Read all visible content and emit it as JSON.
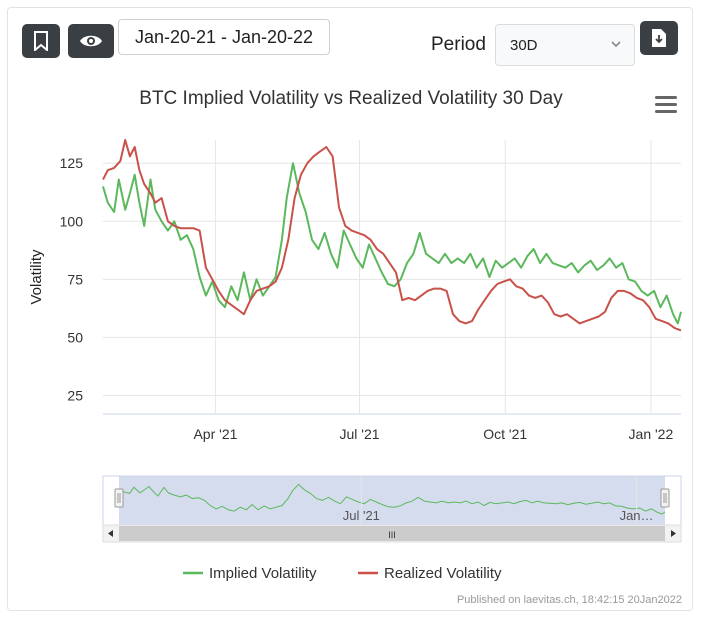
{
  "toolbar": {
    "bookmark_icon": "bookmark-icon",
    "view_icon": "eye-icon",
    "date_range": "Jan-20-21 - Jan-20-22",
    "period_label": "Period",
    "period_value": "30D",
    "download_icon": "download-icon"
  },
  "footer": {
    "published": "Published on laevitas.ch, 18:42:15 20Jan2022"
  },
  "navigator": {
    "handle_label": "III",
    "xtick_labels": [
      "Jul '21",
      "Jan…"
    ]
  },
  "colors": {
    "implied": "#5cb85c",
    "realized": "#c9514a",
    "navigator_fill": "#ccd6eb",
    "grid": "#e6e6e6"
  },
  "chart_data": {
    "type": "line",
    "title": "BTC Implied Volatility vs Realized Volatility 30 Day",
    "ylabel": "Volatility",
    "xlabel": "",
    "ylim": [
      25,
      135
    ],
    "yticks": [
      25,
      50,
      75,
      100,
      125
    ],
    "x_range": [
      "2021-01-20",
      "2022-01-20"
    ],
    "xticks": [
      {
        "date": "2021-04-01",
        "label": "Apr '21"
      },
      {
        "date": "2021-07-01",
        "label": "Jul '21"
      },
      {
        "date": "2021-10-01",
        "label": "Oct '21"
      },
      {
        "date": "2022-01-01",
        "label": "Jan '22"
      }
    ],
    "legend_position": "bottom-center",
    "grid": true,
    "series": [
      {
        "name": "Implied Volatility",
        "points": [
          [
            "2021-01-20",
            115
          ],
          [
            "2021-01-23",
            108
          ],
          [
            "2021-01-27",
            104
          ],
          [
            "2021-01-30",
            118
          ],
          [
            "2021-02-03",
            105
          ],
          [
            "2021-02-06",
            112
          ],
          [
            "2021-02-09",
            120
          ],
          [
            "2021-02-12",
            108
          ],
          [
            "2021-02-15",
            98
          ],
          [
            "2021-02-19",
            118
          ],
          [
            "2021-02-22",
            105
          ],
          [
            "2021-02-26",
            100
          ],
          [
            "2021-03-02",
            96
          ],
          [
            "2021-03-06",
            100
          ],
          [
            "2021-03-10",
            92
          ],
          [
            "2021-03-14",
            94
          ],
          [
            "2021-03-18",
            88
          ],
          [
            "2021-03-22",
            76
          ],
          [
            "2021-03-26",
            68
          ],
          [
            "2021-03-30",
            74
          ],
          [
            "2021-04-03",
            66
          ],
          [
            "2021-04-07",
            63
          ],
          [
            "2021-04-11",
            72
          ],
          [
            "2021-04-15",
            66
          ],
          [
            "2021-04-19",
            78
          ],
          [
            "2021-04-23",
            66
          ],
          [
            "2021-04-27",
            75
          ],
          [
            "2021-05-01",
            68
          ],
          [
            "2021-05-05",
            72
          ],
          [
            "2021-05-09",
            76
          ],
          [
            "2021-05-13",
            92
          ],
          [
            "2021-05-16",
            110
          ],
          [
            "2021-05-20",
            125
          ],
          [
            "2021-05-24",
            112
          ],
          [
            "2021-05-28",
            104
          ],
          [
            "2021-06-01",
            92
          ],
          [
            "2021-06-05",
            88
          ],
          [
            "2021-06-09",
            95
          ],
          [
            "2021-06-13",
            86
          ],
          [
            "2021-06-17",
            80
          ],
          [
            "2021-06-21",
            96
          ],
          [
            "2021-06-25",
            90
          ],
          [
            "2021-06-29",
            84
          ],
          [
            "2021-07-03",
            80
          ],
          [
            "2021-07-07",
            90
          ],
          [
            "2021-07-11",
            84
          ],
          [
            "2021-07-15",
            78
          ],
          [
            "2021-07-19",
            73
          ],
          [
            "2021-07-23",
            72
          ],
          [
            "2021-07-27",
            75
          ],
          [
            "2021-07-31",
            82
          ],
          [
            "2021-08-04",
            86
          ],
          [
            "2021-08-08",
            95
          ],
          [
            "2021-08-12",
            86
          ],
          [
            "2021-08-16",
            84
          ],
          [
            "2021-08-20",
            82
          ],
          [
            "2021-08-24",
            86
          ],
          [
            "2021-08-28",
            82
          ],
          [
            "2021-09-01",
            84
          ],
          [
            "2021-09-05",
            82
          ],
          [
            "2021-09-09",
            86
          ],
          [
            "2021-09-13",
            80
          ],
          [
            "2021-09-17",
            84
          ],
          [
            "2021-09-21",
            76
          ],
          [
            "2021-09-25",
            83
          ],
          [
            "2021-09-29",
            80
          ],
          [
            "2021-10-03",
            82
          ],
          [
            "2021-10-07",
            84
          ],
          [
            "2021-10-11",
            80
          ],
          [
            "2021-10-15",
            85
          ],
          [
            "2021-10-19",
            88
          ],
          [
            "2021-10-23",
            82
          ],
          [
            "2021-10-27",
            86
          ],
          [
            "2021-10-31",
            82
          ],
          [
            "2021-11-04",
            81
          ],
          [
            "2021-11-08",
            80
          ],
          [
            "2021-11-12",
            82
          ],
          [
            "2021-11-16",
            78
          ],
          [
            "2021-11-20",
            81
          ],
          [
            "2021-11-24",
            83
          ],
          [
            "2021-11-28",
            79
          ],
          [
            "2021-12-02",
            81
          ],
          [
            "2021-12-06",
            84
          ],
          [
            "2021-12-10",
            80
          ],
          [
            "2021-12-14",
            82
          ],
          [
            "2021-12-18",
            75
          ],
          [
            "2021-12-22",
            74
          ],
          [
            "2021-12-26",
            70
          ],
          [
            "2021-12-30",
            68
          ],
          [
            "2022-01-03",
            70
          ],
          [
            "2022-01-07",
            63
          ],
          [
            "2022-01-11",
            68
          ],
          [
            "2022-01-15",
            60
          ],
          [
            "2022-01-18",
            56
          ],
          [
            "2022-01-20",
            61
          ]
        ]
      },
      {
        "name": "Realized Volatility",
        "points": [
          [
            "2021-01-20",
            118
          ],
          [
            "2021-01-23",
            122
          ],
          [
            "2021-01-27",
            123
          ],
          [
            "2021-01-31",
            126
          ],
          [
            "2021-02-03",
            135
          ],
          [
            "2021-02-06",
            128
          ],
          [
            "2021-02-09",
            132
          ],
          [
            "2021-02-12",
            122
          ],
          [
            "2021-02-15",
            116
          ],
          [
            "2021-02-19",
            112
          ],
          [
            "2021-02-22",
            108
          ],
          [
            "2021-02-26",
            110
          ],
          [
            "2021-03-02",
            100
          ],
          [
            "2021-03-06",
            98
          ],
          [
            "2021-03-10",
            97
          ],
          [
            "2021-03-14",
            97
          ],
          [
            "2021-03-18",
            97
          ],
          [
            "2021-03-22",
            96
          ],
          [
            "2021-03-26",
            80
          ],
          [
            "2021-03-30",
            75
          ],
          [
            "2021-04-03",
            70
          ],
          [
            "2021-04-07",
            66
          ],
          [
            "2021-04-11",
            64
          ],
          [
            "2021-04-15",
            62
          ],
          [
            "2021-04-19",
            60
          ],
          [
            "2021-04-23",
            66
          ],
          [
            "2021-04-27",
            70
          ],
          [
            "2021-05-01",
            71
          ],
          [
            "2021-05-05",
            72
          ],
          [
            "2021-05-09",
            74
          ],
          [
            "2021-05-13",
            80
          ],
          [
            "2021-05-17",
            92
          ],
          [
            "2021-05-21",
            110
          ],
          [
            "2021-05-25",
            120
          ],
          [
            "2021-05-29",
            125
          ],
          [
            "2021-06-02",
            128
          ],
          [
            "2021-06-06",
            130
          ],
          [
            "2021-06-10",
            132
          ],
          [
            "2021-06-14",
            128
          ],
          [
            "2021-06-18",
            106
          ],
          [
            "2021-06-22",
            98
          ],
          [
            "2021-06-26",
            96
          ],
          [
            "2021-06-30",
            95
          ],
          [
            "2021-07-04",
            94
          ],
          [
            "2021-07-08",
            92
          ],
          [
            "2021-07-12",
            88
          ],
          [
            "2021-07-16",
            86
          ],
          [
            "2021-07-20",
            82
          ],
          [
            "2021-07-24",
            78
          ],
          [
            "2021-07-28",
            66
          ],
          [
            "2021-08-01",
            67
          ],
          [
            "2021-08-05",
            66
          ],
          [
            "2021-08-09",
            68
          ],
          [
            "2021-08-13",
            70
          ],
          [
            "2021-08-17",
            71
          ],
          [
            "2021-08-21",
            71
          ],
          [
            "2021-08-25",
            70
          ],
          [
            "2021-08-29",
            60
          ],
          [
            "2021-09-02",
            57
          ],
          [
            "2021-09-06",
            56
          ],
          [
            "2021-09-10",
            57
          ],
          [
            "2021-09-14",
            62
          ],
          [
            "2021-09-18",
            66
          ],
          [
            "2021-09-22",
            70
          ],
          [
            "2021-09-26",
            73
          ],
          [
            "2021-09-30",
            74
          ],
          [
            "2021-10-04",
            75
          ],
          [
            "2021-10-08",
            72
          ],
          [
            "2021-10-12",
            71
          ],
          [
            "2021-10-16",
            68
          ],
          [
            "2021-10-20",
            67
          ],
          [
            "2021-10-24",
            68
          ],
          [
            "2021-10-28",
            65
          ],
          [
            "2021-11-01",
            60
          ],
          [
            "2021-11-05",
            59
          ],
          [
            "2021-11-09",
            60
          ],
          [
            "2021-11-13",
            58
          ],
          [
            "2021-11-17",
            56
          ],
          [
            "2021-11-21",
            57
          ],
          [
            "2021-11-25",
            58
          ],
          [
            "2021-11-29",
            59
          ],
          [
            "2021-12-03",
            61
          ],
          [
            "2021-12-07",
            67
          ],
          [
            "2021-12-11",
            70
          ],
          [
            "2021-12-15",
            70
          ],
          [
            "2021-12-19",
            69
          ],
          [
            "2021-12-23",
            67
          ],
          [
            "2021-12-27",
            66
          ],
          [
            "2021-12-31",
            63
          ],
          [
            "2022-01-04",
            58
          ],
          [
            "2022-01-08",
            57
          ],
          [
            "2022-01-12",
            56
          ],
          [
            "2022-01-16",
            54
          ],
          [
            "2022-01-20",
            53
          ]
        ]
      }
    ]
  }
}
